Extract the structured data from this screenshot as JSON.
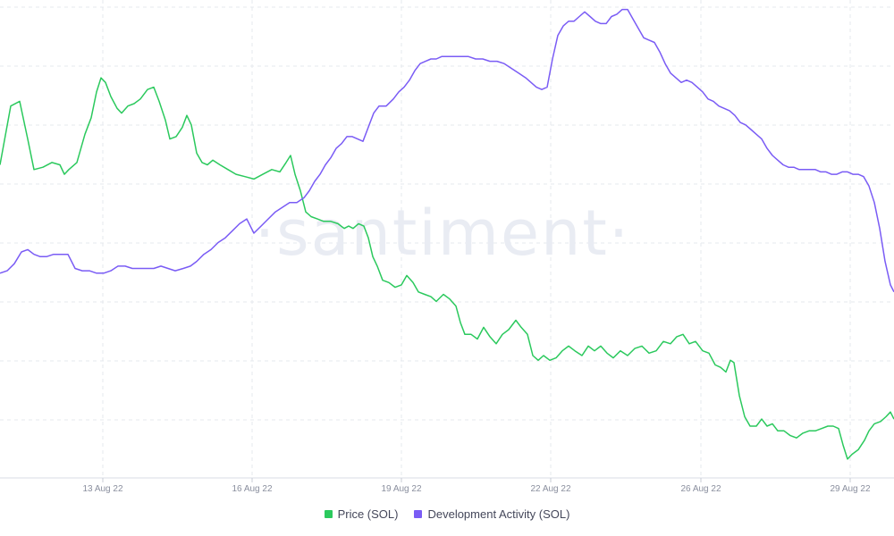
{
  "chart_data": {
    "type": "line",
    "watermark": "·santiment·",
    "x_ticks": [
      "13 Aug 22",
      "16 Aug 22",
      "19 Aug 22",
      "22 Aug 22",
      "26 Aug 22",
      "29 Aug 22"
    ],
    "grid": true,
    "legend_position": "bottom-center",
    "series": [
      {
        "name": "Price (SOL)",
        "color": "#2bc95d",
        "axis": "hidden",
        "points": [
          [
            0,
            73
          ],
          [
            12,
            98
          ],
          [
            22,
            100
          ],
          [
            31,
            84
          ],
          [
            38,
            71
          ],
          [
            48,
            72
          ],
          [
            58,
            74
          ],
          [
            67,
            73
          ],
          [
            72,
            69
          ],
          [
            77,
            71
          ],
          [
            86,
            74
          ],
          [
            95,
            86
          ],
          [
            102,
            93
          ],
          [
            108,
            104
          ],
          [
            113,
            110
          ],
          [
            118,
            108
          ],
          [
            124,
            102
          ],
          [
            131,
            97
          ],
          [
            136,
            95
          ],
          [
            143,
            98
          ],
          [
            150,
            99
          ],
          [
            157,
            101
          ],
          [
            165,
            105
          ],
          [
            172,
            106
          ],
          [
            178,
            100
          ],
          [
            185,
            92
          ],
          [
            190,
            84
          ],
          [
            197,
            85
          ],
          [
            204,
            89
          ],
          [
            209,
            94
          ],
          [
            214,
            90
          ],
          [
            220,
            78
          ],
          [
            226,
            74
          ],
          [
            232,
            73
          ],
          [
            238,
            75
          ],
          [
            246,
            73
          ],
          [
            255,
            71
          ],
          [
            264,
            69
          ],
          [
            274,
            68
          ],
          [
            284,
            67
          ],
          [
            294,
            69
          ],
          [
            304,
            71
          ],
          [
            313,
            70
          ],
          [
            320,
            74
          ],
          [
            325,
            77
          ],
          [
            330,
            69
          ],
          [
            336,
            62
          ],
          [
            342,
            53
          ],
          [
            348,
            51
          ],
          [
            355,
            50
          ],
          [
            362,
            49
          ],
          [
            370,
            49
          ],
          [
            378,
            48
          ],
          [
            385,
            46
          ],
          [
            390,
            47
          ],
          [
            395,
            46
          ],
          [
            401,
            48
          ],
          [
            407,
            47
          ],
          [
            412,
            42
          ],
          [
            417,
            34
          ],
          [
            422,
            30
          ],
          [
            428,
            24
          ],
          [
            435,
            23
          ],
          [
            442,
            21
          ],
          [
            449,
            22
          ],
          [
            455,
            26
          ],
          [
            462,
            23
          ],
          [
            468,
            19
          ],
          [
            475,
            18
          ],
          [
            482,
            17
          ],
          [
            488,
            15
          ],
          [
            496,
            18
          ],
          [
            503,
            16
          ],
          [
            510,
            13
          ],
          [
            515,
            6
          ],
          [
            520,
            1
          ],
          [
            527,
            1
          ],
          [
            534,
            -1
          ],
          [
            541,
            4
          ],
          [
            548,
            0
          ],
          [
            555,
            -3
          ],
          [
            562,
            1
          ],
          [
            569,
            3
          ],
          [
            577,
            7
          ],
          [
            583,
            4
          ],
          [
            590,
            1
          ],
          [
            596,
            -8
          ],
          [
            602,
            -10
          ],
          [
            608,
            -8
          ],
          [
            615,
            -10
          ],
          [
            622,
            -9
          ],
          [
            629,
            -6
          ],
          [
            636,
            -4
          ],
          [
            643,
            -6
          ],
          [
            651,
            -8
          ],
          [
            658,
            -4
          ],
          [
            665,
            -6
          ],
          [
            672,
            -4
          ],
          [
            679,
            -7
          ],
          [
            686,
            -9
          ],
          [
            694,
            -6
          ],
          [
            702,
            -8
          ],
          [
            710,
            -5
          ],
          [
            718,
            -4
          ],
          [
            726,
            -7
          ],
          [
            734,
            -6
          ],
          [
            742,
            -2
          ],
          [
            750,
            -3
          ],
          [
            757,
            0
          ],
          [
            764,
            1
          ],
          [
            771,
            -3
          ],
          [
            778,
            -2
          ],
          [
            786,
            -6
          ],
          [
            793,
            -7
          ],
          [
            800,
            -12
          ],
          [
            806,
            -13
          ],
          [
            812,
            -15
          ],
          [
            817,
            -10
          ],
          [
            821,
            -11
          ],
          [
            827,
            -25
          ],
          [
            833,
            -34
          ],
          [
            839,
            -38
          ],
          [
            846,
            -38
          ],
          [
            852,
            -35
          ],
          [
            858,
            -38
          ],
          [
            864,
            -37
          ],
          [
            870,
            -40
          ],
          [
            877,
            -40
          ],
          [
            884,
            -42
          ],
          [
            891,
            -43
          ],
          [
            898,
            -41
          ],
          [
            905,
            -40
          ],
          [
            912,
            -40
          ],
          [
            919,
            -39
          ],
          [
            926,
            -38
          ],
          [
            932,
            -38
          ],
          [
            938,
            -39
          ],
          [
            943,
            -46
          ],
          [
            948,
            -52
          ],
          [
            953,
            -50
          ],
          [
            960,
            -48
          ],
          [
            967,
            -44
          ],
          [
            972,
            -40
          ],
          [
            978,
            -37
          ],
          [
            985,
            -36
          ],
          [
            991,
            -34
          ],
          [
            996,
            -32
          ],
          [
            1000,
            -35
          ]
        ]
      },
      {
        "name": "Development Activity (SOL)",
        "color": "#7a5cf5",
        "axis": "hidden",
        "points": [
          [
            0,
            27
          ],
          [
            8,
            28
          ],
          [
            16,
            31
          ],
          [
            24,
            36
          ],
          [
            31,
            37
          ],
          [
            38,
            35
          ],
          [
            45,
            34
          ],
          [
            52,
            34
          ],
          [
            60,
            35
          ],
          [
            68,
            35
          ],
          [
            76,
            35
          ],
          [
            84,
            29
          ],
          [
            92,
            28
          ],
          [
            100,
            28
          ],
          [
            108,
            27
          ],
          [
            116,
            27
          ],
          [
            124,
            28
          ],
          [
            132,
            30
          ],
          [
            140,
            30
          ],
          [
            148,
            29
          ],
          [
            156,
            29
          ],
          [
            164,
            29
          ],
          [
            172,
            29
          ],
          [
            180,
            30
          ],
          [
            188,
            29
          ],
          [
            196,
            28
          ],
          [
            205,
            29
          ],
          [
            213,
            30
          ],
          [
            220,
            32
          ],
          [
            228,
            35
          ],
          [
            236,
            37
          ],
          [
            244,
            40
          ],
          [
            252,
            42
          ],
          [
            260,
            45
          ],
          [
            268,
            48
          ],
          [
            276,
            50
          ],
          [
            284,
            44
          ],
          [
            292,
            47
          ],
          [
            300,
            50
          ],
          [
            308,
            53
          ],
          [
            316,
            55
          ],
          [
            324,
            57
          ],
          [
            332,
            57
          ],
          [
            340,
            59
          ],
          [
            346,
            62
          ],
          [
            352,
            66
          ],
          [
            358,
            69
          ],
          [
            364,
            73
          ],
          [
            370,
            76
          ],
          [
            376,
            80
          ],
          [
            382,
            82
          ],
          [
            388,
            85
          ],
          [
            394,
            85
          ],
          [
            400,
            84
          ],
          [
            406,
            83
          ],
          [
            412,
            89
          ],
          [
            418,
            95
          ],
          [
            424,
            98
          ],
          [
            432,
            98
          ],
          [
            440,
            101
          ],
          [
            446,
            104
          ],
          [
            452,
            106
          ],
          [
            458,
            109
          ],
          [
            464,
            113
          ],
          [
            470,
            116
          ],
          [
            476,
            117
          ],
          [
            482,
            118
          ],
          [
            488,
            118
          ],
          [
            494,
            119
          ],
          [
            500,
            119
          ],
          [
            508,
            119
          ],
          [
            516,
            119
          ],
          [
            524,
            119
          ],
          [
            532,
            118
          ],
          [
            540,
            118
          ],
          [
            548,
            117
          ],
          [
            556,
            117
          ],
          [
            564,
            116
          ],
          [
            572,
            114
          ],
          [
            580,
            112
          ],
          [
            588,
            110
          ],
          [
            594,
            108
          ],
          [
            600,
            106
          ],
          [
            606,
            105
          ],
          [
            612,
            106
          ],
          [
            618,
            118
          ],
          [
            624,
            128
          ],
          [
            630,
            132
          ],
          [
            636,
            134
          ],
          [
            642,
            134
          ],
          [
            648,
            136
          ],
          [
            654,
            138
          ],
          [
            660,
            136
          ],
          [
            666,
            134
          ],
          [
            672,
            133
          ],
          [
            678,
            133
          ],
          [
            684,
            136
          ],
          [
            690,
            137
          ],
          [
            696,
            139
          ],
          [
            702,
            139
          ],
          [
            708,
            135
          ],
          [
            714,
            131
          ],
          [
            720,
            127
          ],
          [
            726,
            126
          ],
          [
            732,
            125
          ],
          [
            738,
            121
          ],
          [
            744,
            116
          ],
          [
            750,
            112
          ],
          [
            756,
            110
          ],
          [
            762,
            108
          ],
          [
            768,
            109
          ],
          [
            774,
            108
          ],
          [
            780,
            106
          ],
          [
            786,
            104
          ],
          [
            792,
            101
          ],
          [
            798,
            100
          ],
          [
            804,
            98
          ],
          [
            810,
            97
          ],
          [
            816,
            96
          ],
          [
            822,
            94
          ],
          [
            828,
            91
          ],
          [
            834,
            90
          ],
          [
            840,
            88
          ],
          [
            846,
            86
          ],
          [
            852,
            84
          ],
          [
            858,
            80
          ],
          [
            864,
            77
          ],
          [
            870,
            75
          ],
          [
            876,
            73
          ],
          [
            882,
            72
          ],
          [
            888,
            72
          ],
          [
            894,
            71
          ],
          [
            900,
            71
          ],
          [
            906,
            71
          ],
          [
            912,
            71
          ],
          [
            918,
            70
          ],
          [
            924,
            70
          ],
          [
            930,
            69
          ],
          [
            936,
            69
          ],
          [
            942,
            70
          ],
          [
            948,
            70
          ],
          [
            954,
            69
          ],
          [
            960,
            69
          ],
          [
            966,
            68
          ],
          [
            972,
            64
          ],
          [
            978,
            57
          ],
          [
            984,
            46
          ],
          [
            990,
            32
          ],
          [
            996,
            22
          ],
          [
            1000,
            19
          ]
        ]
      }
    ]
  },
  "legend": {
    "items": [
      {
        "label": "Price (SOL)",
        "color": "#2bc95d"
      },
      {
        "label": "Development Activity (SOL)",
        "color": "#7a5cf5"
      }
    ]
  }
}
